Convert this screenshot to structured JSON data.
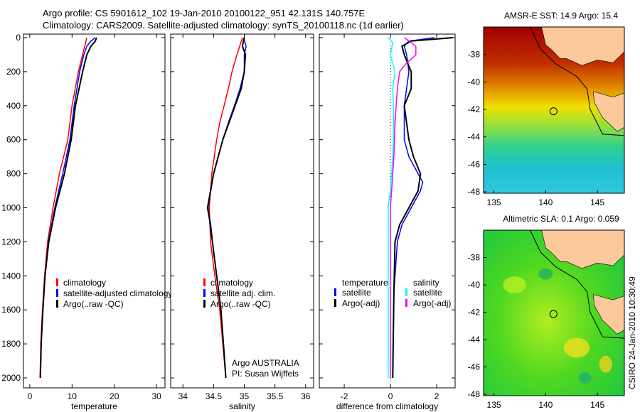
{
  "title_line1": "Argo profile: CS 5901612_102 19-Jan-2010 20100122_951 42.131S 140.757E",
  "title_line2": "Climatology: CARS2009. Satellite-adjusted climatology: synTS_20100118.nc (1d earlier)",
  "side_label": "CSIRO 24-Jan-2010 10:30:49",
  "colors": {
    "red": "#ff0000",
    "blue": "#0000ff",
    "black": "#000000",
    "cyan": "#00ffff",
    "magenta": "#ff00ff",
    "land": "#fcc99a"
  },
  "chart_data": [
    {
      "type": "line",
      "xlabel": "temperature",
      "xlim": [
        -1.5,
        32
      ],
      "ylim": [
        0,
        2050
      ],
      "xticks": [
        0,
        10,
        20,
        30
      ],
      "yticks": [
        0,
        200,
        400,
        600,
        800,
        1000,
        1200,
        1400,
        1600,
        1800,
        2000
      ],
      "legend": [
        "climatology",
        "satellite-adjusted climatology",
        "Argo(..raw -QC)"
      ],
      "series": [
        {
          "name": "climatology",
          "color": "red",
          "depth": [
            0,
            50,
            100,
            200,
            400,
            600,
            800,
            1000,
            1200,
            1400,
            1600,
            1800,
            2000
          ],
          "values": [
            13.5,
            13,
            12.5,
            11.5,
            10,
            9,
            7,
            5.5,
            4.2,
            3.5,
            3,
            2.6,
            2.4
          ]
        },
        {
          "name": "satellite-adjusted climatology",
          "color": "blue",
          "depth": [
            0,
            20,
            50,
            100,
            200,
            400,
            600,
            800,
            1000,
            1200,
            1400,
            1600,
            1800,
            2000
          ],
          "values": [
            15.5,
            14.5,
            13.5,
            12.8,
            11.8,
            10.5,
            9.5,
            7.8,
            5.9,
            4.4,
            3.6,
            3.1,
            2.7,
            2.5
          ]
        },
        {
          "name": "Argo(..raw -QC)",
          "color": "black",
          "depth": [
            0,
            20,
            50,
            100,
            200,
            400,
            600,
            800,
            1000,
            1200,
            1400,
            1600,
            1800,
            2000
          ],
          "values": [
            15.8,
            15.5,
            14.5,
            13.5,
            12.5,
            10.8,
            9.8,
            8.2,
            6.1,
            4.5,
            3.6,
            3.1,
            2.7,
            2.5
          ]
        }
      ]
    },
    {
      "type": "line",
      "xlabel": "salinity",
      "xlim": [
        33.8,
        36.13
      ],
      "ylim": [
        0,
        2050
      ],
      "xticks": [
        34,
        34.5,
        35,
        35.5,
        36
      ],
      "legend": [
        "climatology",
        "satellite adj. clim.",
        "Argo(..raw -QC)"
      ],
      "annotation": [
        "Argo AUSTRALIA",
        "PI: Susan Wijffels"
      ],
      "series": [
        {
          "name": "climatology",
          "color": "red",
          "depth": [
            0,
            100,
            200,
            300,
            400,
            500,
            600,
            800,
            1000,
            1200,
            1400,
            1600,
            1800,
            2000
          ],
          "values": [
            34.97,
            34.88,
            34.8,
            34.74,
            34.67,
            34.6,
            34.55,
            34.47,
            34.43,
            34.45,
            34.52,
            34.6,
            34.65,
            34.7
          ]
        },
        {
          "name": "satellite adj. clim.",
          "color": "blue",
          "depth": [
            0,
            50,
            100,
            200,
            300,
            400,
            500,
            600,
            800,
            1000,
            1100,
            1200,
            1400,
            1600,
            1800,
            2000
          ],
          "values": [
            34.99,
            35.03,
            35.0,
            35.0,
            34.93,
            34.84,
            34.74,
            34.65,
            34.5,
            34.41,
            34.44,
            34.48,
            34.55,
            34.62,
            34.66,
            34.7
          ]
        },
        {
          "name": "Argo(..raw -QC)",
          "color": "black",
          "depth": [
            0,
            50,
            100,
            200,
            300,
            400,
            500,
            600,
            800,
            1000,
            1100,
            1200,
            1400,
            1600,
            1800,
            2000
          ],
          "values": [
            35.0,
            34.97,
            35.02,
            35.0,
            34.95,
            34.85,
            34.75,
            34.65,
            34.5,
            34.4,
            34.45,
            34.48,
            34.55,
            34.62,
            34.66,
            34.7
          ]
        }
      ]
    },
    {
      "type": "line",
      "xlabel": "difference from climatology",
      "xlim": [
        -3.08,
        2.8
      ],
      "ylim": [
        0,
        2050
      ],
      "xticks": [
        -2,
        0,
        2
      ],
      "legend_groups": [
        {
          "title": "temperature",
          "items": [
            "satellite",
            "Argo(-adj)"
          ]
        },
        {
          "title": "salinity",
          "items": [
            "satellite",
            "Argo(-adj)"
          ]
        }
      ],
      "series": [
        {
          "name": "temperature satellite",
          "color": "blue",
          "depth": [
            0,
            20,
            50,
            100,
            200,
            400,
            600,
            700,
            800,
            850,
            900,
            1000,
            1100,
            1200,
            1500,
            2000
          ],
          "values": [
            1.9,
            0.8,
            0.6,
            0.7,
            0.8,
            0.6,
            0.6,
            0.8,
            1.2,
            1.4,
            1.3,
            0.9,
            0.5,
            0.3,
            0.15,
            0.1
          ]
        },
        {
          "name": "temperature Argo(-adj)",
          "color": "black",
          "depth": [
            0,
            20,
            50,
            100,
            200,
            300,
            400,
            600,
            700,
            800,
            900,
            1000,
            1100,
            1200,
            1500,
            2000
          ],
          "values": [
            2.7,
            0.9,
            0.5,
            0.6,
            0.9,
            0.9,
            0.6,
            0.8,
            1.0,
            1.3,
            1.2,
            0.8,
            0.4,
            0.2,
            0.15,
            0.1
          ]
        },
        {
          "name": "salinity satellite",
          "color": "cyan",
          "depth": [
            0,
            30,
            100,
            200,
            300,
            500,
            700,
            900,
            1000,
            1200,
            1500,
            2000
          ],
          "values": [
            -0.1,
            0.1,
            0.0,
            0.2,
            0.1,
            0.15,
            0.1,
            0.0,
            -0.1,
            -0.1,
            -0.1,
            -0.1
          ]
        },
        {
          "name": "salinity Argo(-adj)",
          "color": "magenta",
          "depth": [
            0,
            50,
            100,
            150,
            200,
            300,
            500,
            700,
            900,
            1000,
            1200,
            1500,
            2000
          ],
          "values": [
            0.6,
            1.1,
            1.1,
            0.7,
            0.4,
            0.3,
            0.2,
            0.15,
            0.05,
            0.0,
            0.0,
            0.0,
            0.0
          ]
        }
      ]
    },
    {
      "type": "heatmap",
      "title": "AMSR-E SST: 14.9 Argo: 15.4",
      "xlim": [
        134,
        147.6
      ],
      "ylim": [
        -48.1,
        -36
      ],
      "xticks": [
        135,
        140,
        145
      ],
      "yticks": [
        -38,
        -40,
        -42,
        -44,
        -46,
        -48
      ],
      "argo_position": [
        140.757,
        -42.131
      ]
    },
    {
      "type": "heatmap",
      "title": "Altimetric SLA: 0.1 Argo: 0.059",
      "xlim": [
        134,
        147.6
      ],
      "ylim": [
        -48.1,
        -36
      ],
      "xticks": [
        135,
        140,
        145
      ],
      "yticks": [
        -38,
        -40,
        -42,
        -44,
        -46,
        -48
      ],
      "argo_position": [
        140.757,
        -42.131
      ]
    }
  ]
}
